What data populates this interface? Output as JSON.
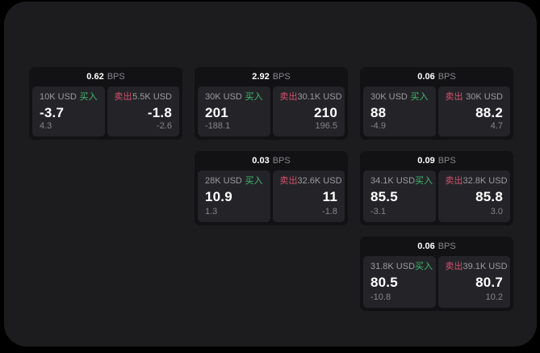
{
  "labels": {
    "bps": "BPS",
    "buy": "买入",
    "sell": "卖出"
  },
  "colors": {
    "background": "#000000",
    "panel_bg": "#1c1c1e",
    "card_bg": "#121214",
    "cell_bg": "#242428",
    "buy_green": "#3dba6f",
    "sell_red": "#d5506b",
    "text_primary": "#ffffff",
    "text_secondary": "#9a9a9f",
    "text_muted": "#85858a"
  },
  "cards": [
    {
      "bps": "0.62",
      "buy": {
        "amount": "10K USD",
        "price": "-3.7",
        "delta": "4.3"
      },
      "sell": {
        "amount": "5.5K USD",
        "price": "-1.8",
        "delta": "-2.6"
      }
    },
    {
      "bps": "2.92",
      "buy": {
        "amount": "30K USD",
        "price": "201",
        "delta": "-188.1"
      },
      "sell": {
        "amount": "30.1K USD",
        "price": "210",
        "delta": "196.5"
      }
    },
    {
      "bps": "0.06",
      "buy": {
        "amount": "30K USD",
        "price": "88",
        "delta": "-4.9"
      },
      "sell": {
        "amount": "30K USD",
        "price": "88.2",
        "delta": "4.7"
      }
    },
    {
      "bps": "0.03",
      "buy": {
        "amount": "28K USD",
        "price": "10.9",
        "delta": "1.3"
      },
      "sell": {
        "amount": "32.6K USD",
        "price": "11",
        "delta": "-1.8"
      }
    },
    {
      "bps": "0.09",
      "buy": {
        "amount": "34.1K USD",
        "price": "85.5",
        "delta": "-3.1"
      },
      "sell": {
        "amount": "32.8K USD",
        "price": "85.8",
        "delta": "3.0"
      }
    },
    {
      "bps": "0.06",
      "buy": {
        "amount": "31.8K USD",
        "price": "80.5",
        "delta": "-10.8"
      },
      "sell": {
        "amount": "39.1K USD",
        "price": "80.7",
        "delta": "10.2"
      }
    }
  ]
}
